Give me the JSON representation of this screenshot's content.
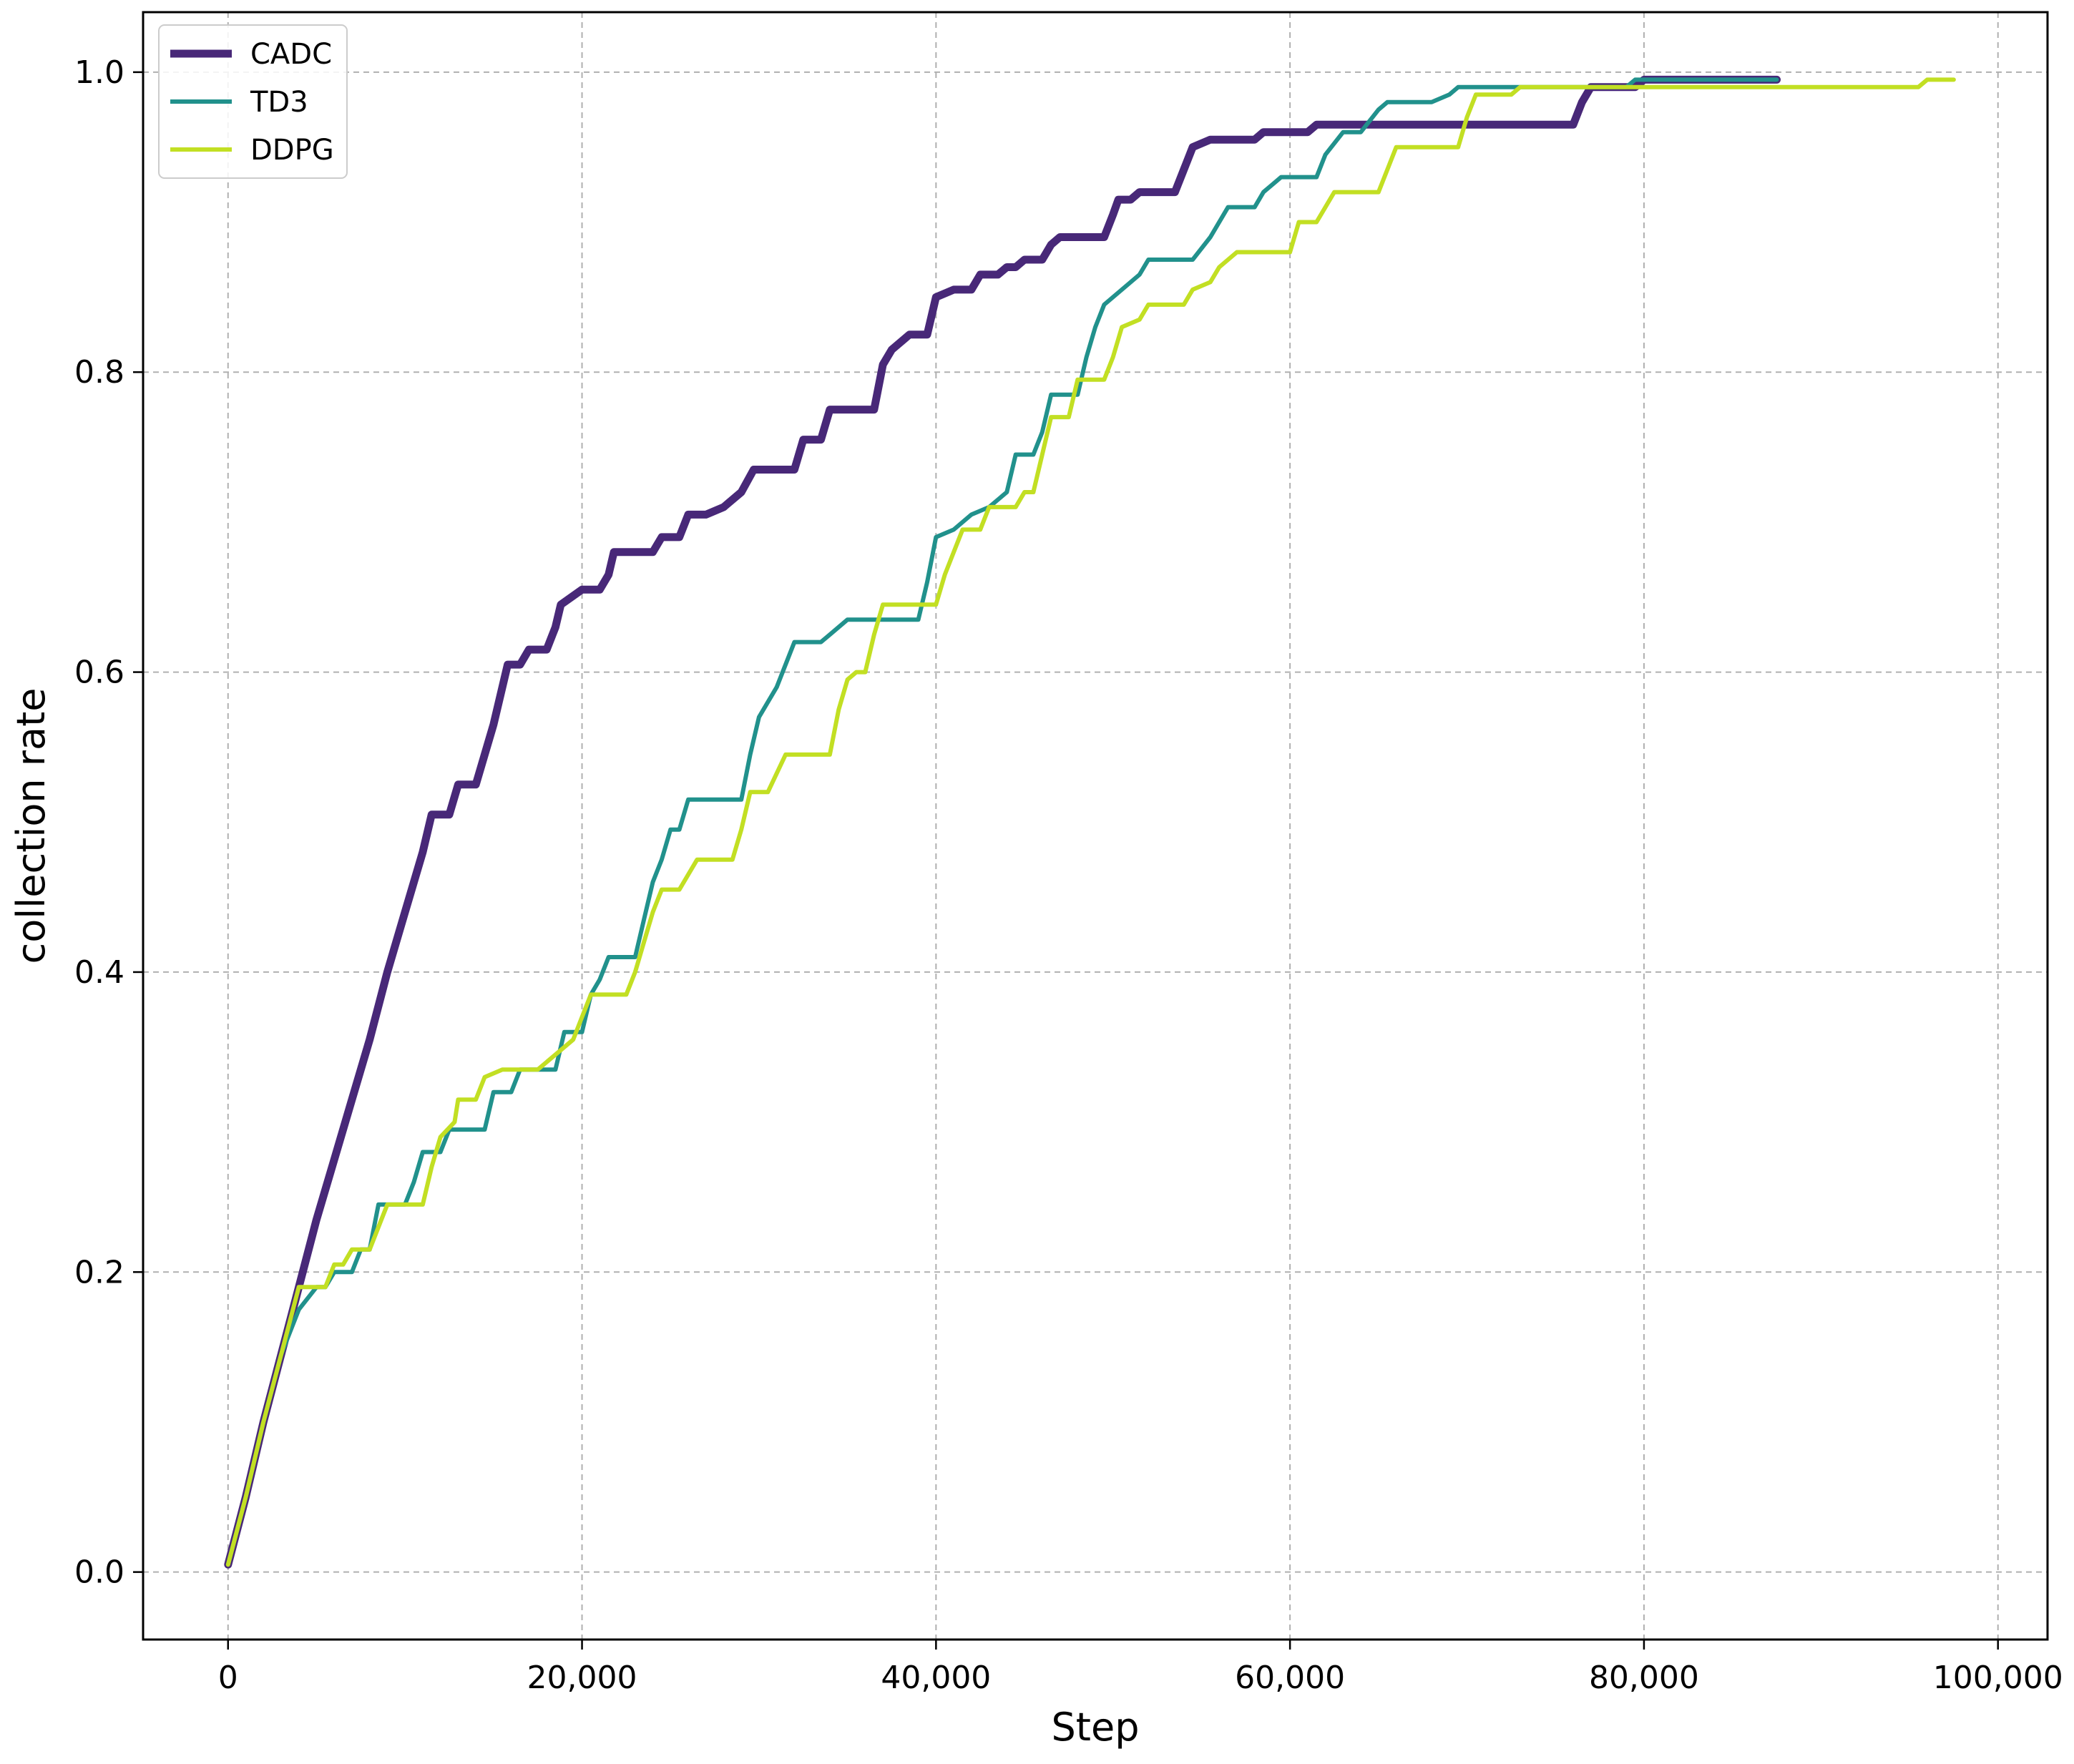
{
  "chart_data": {
    "type": "line",
    "title": "",
    "xlabel": "Step",
    "ylabel": "collection rate",
    "xlim": [
      -4800,
      102800
    ],
    "ylim": [
      -0.045,
      1.04
    ],
    "x_ticks": [
      0,
      20000,
      40000,
      60000,
      80000,
      100000
    ],
    "x_tick_labels": [
      "0",
      "20,000",
      "40,000",
      "60,000",
      "80,000",
      "100,000"
    ],
    "y_ticks": [
      0.0,
      0.2,
      0.4,
      0.6,
      0.8,
      1.0
    ],
    "y_tick_labels": [
      "0.0",
      "0.2",
      "0.4",
      "0.6",
      "0.8",
      "1.0"
    ],
    "grid": true,
    "legend_position": "top-left",
    "series": [
      {
        "name": "CADC",
        "color": "#482878",
        "line_width": 11,
        "points": [
          [
            0,
            0.005
          ],
          [
            1000,
            0.05
          ],
          [
            2000,
            0.1
          ],
          [
            3000,
            0.145
          ],
          [
            4000,
            0.19
          ],
          [
            5000,
            0.235
          ],
          [
            6000,
            0.275
          ],
          [
            7000,
            0.315
          ],
          [
            8000,
            0.355
          ],
          [
            9000,
            0.4
          ],
          [
            10000,
            0.44
          ],
          [
            11000,
            0.48
          ],
          [
            11500,
            0.505
          ],
          [
            12500,
            0.505
          ],
          [
            13000,
            0.525
          ],
          [
            14000,
            0.525
          ],
          [
            15000,
            0.565
          ],
          [
            15800,
            0.605
          ],
          [
            16500,
            0.605
          ],
          [
            17000,
            0.615
          ],
          [
            18000,
            0.615
          ],
          [
            18500,
            0.63
          ],
          [
            18800,
            0.645
          ],
          [
            20000,
            0.655
          ],
          [
            21000,
            0.655
          ],
          [
            21500,
            0.665
          ],
          [
            21800,
            0.68
          ],
          [
            23000,
            0.68
          ],
          [
            24000,
            0.68
          ],
          [
            24500,
            0.69
          ],
          [
            25500,
            0.69
          ],
          [
            26000,
            0.705
          ],
          [
            27000,
            0.705
          ],
          [
            28000,
            0.71
          ],
          [
            29000,
            0.72
          ],
          [
            29700,
            0.735
          ],
          [
            32000,
            0.735
          ],
          [
            32500,
            0.755
          ],
          [
            33500,
            0.755
          ],
          [
            34000,
            0.775
          ],
          [
            36500,
            0.775
          ],
          [
            37000,
            0.805
          ],
          [
            37500,
            0.815
          ],
          [
            38500,
            0.825
          ],
          [
            39500,
            0.825
          ],
          [
            40000,
            0.85
          ],
          [
            41000,
            0.855
          ],
          [
            42000,
            0.855
          ],
          [
            42500,
            0.865
          ],
          [
            43500,
            0.865
          ],
          [
            44000,
            0.87
          ],
          [
            44500,
            0.87
          ],
          [
            45000,
            0.875
          ],
          [
            46000,
            0.875
          ],
          [
            46500,
            0.885
          ],
          [
            47000,
            0.89
          ],
          [
            49500,
            0.89
          ],
          [
            50000,
            0.905
          ],
          [
            50300,
            0.915
          ],
          [
            51000,
            0.915
          ],
          [
            51500,
            0.92
          ],
          [
            53500,
            0.92
          ],
          [
            54000,
            0.935
          ],
          [
            54500,
            0.95
          ],
          [
            55500,
            0.955
          ],
          [
            58000,
            0.955
          ],
          [
            58500,
            0.96
          ],
          [
            61000,
            0.96
          ],
          [
            61500,
            0.965
          ],
          [
            76000,
            0.965
          ],
          [
            76500,
            0.98
          ],
          [
            77000,
            0.99
          ],
          [
            79500,
            0.99
          ],
          [
            80000,
            0.995
          ],
          [
            87500,
            0.995
          ]
        ]
      },
      {
        "name": "TD3",
        "color": "#21918c",
        "line_width": 6,
        "points": [
          [
            0,
            0.005
          ],
          [
            1000,
            0.05
          ],
          [
            2000,
            0.1
          ],
          [
            3000,
            0.145
          ],
          [
            4000,
            0.175
          ],
          [
            5000,
            0.19
          ],
          [
            5500,
            0.19
          ],
          [
            6000,
            0.2
          ],
          [
            7000,
            0.2
          ],
          [
            7500,
            0.215
          ],
          [
            8000,
            0.215
          ],
          [
            8500,
            0.245
          ],
          [
            10000,
            0.245
          ],
          [
            10500,
            0.26
          ],
          [
            11000,
            0.28
          ],
          [
            12000,
            0.28
          ],
          [
            12500,
            0.295
          ],
          [
            14500,
            0.295
          ],
          [
            15000,
            0.32
          ],
          [
            16000,
            0.32
          ],
          [
            16500,
            0.335
          ],
          [
            18500,
            0.335
          ],
          [
            19000,
            0.36
          ],
          [
            20000,
            0.36
          ],
          [
            20500,
            0.385
          ],
          [
            21000,
            0.395
          ],
          [
            21500,
            0.41
          ],
          [
            23000,
            0.41
          ],
          [
            23500,
            0.435
          ],
          [
            24000,
            0.46
          ],
          [
            24500,
            0.475
          ],
          [
            25000,
            0.495
          ],
          [
            25500,
            0.495
          ],
          [
            26000,
            0.515
          ],
          [
            29000,
            0.515
          ],
          [
            29500,
            0.545
          ],
          [
            30000,
            0.57
          ],
          [
            31000,
            0.59
          ],
          [
            32000,
            0.62
          ],
          [
            33500,
            0.62
          ],
          [
            34000,
            0.625
          ],
          [
            35000,
            0.635
          ],
          [
            39000,
            0.635
          ],
          [
            39500,
            0.66
          ],
          [
            40000,
            0.69
          ],
          [
            41000,
            0.695
          ],
          [
            42000,
            0.705
          ],
          [
            43000,
            0.71
          ],
          [
            44000,
            0.72
          ],
          [
            44500,
            0.745
          ],
          [
            45500,
            0.745
          ],
          [
            46000,
            0.76
          ],
          [
            46500,
            0.785
          ],
          [
            48000,
            0.785
          ],
          [
            48500,
            0.81
          ],
          [
            49000,
            0.83
          ],
          [
            49500,
            0.845
          ],
          [
            50500,
            0.855
          ],
          [
            51500,
            0.865
          ],
          [
            52000,
            0.875
          ],
          [
            54500,
            0.875
          ],
          [
            55500,
            0.89
          ],
          [
            56500,
            0.91
          ],
          [
            58000,
            0.91
          ],
          [
            58500,
            0.92
          ],
          [
            59500,
            0.93
          ],
          [
            61500,
            0.93
          ],
          [
            62000,
            0.945
          ],
          [
            63000,
            0.96
          ],
          [
            64000,
            0.96
          ],
          [
            65000,
            0.975
          ],
          [
            65500,
            0.98
          ],
          [
            68000,
            0.98
          ],
          [
            69000,
            0.985
          ],
          [
            69500,
            0.99
          ],
          [
            79000,
            0.99
          ],
          [
            79500,
            0.995
          ],
          [
            87500,
            0.995
          ]
        ]
      },
      {
        "name": "DDPG",
        "color": "#c2df23",
        "line_width": 6,
        "points": [
          [
            0,
            0.005
          ],
          [
            1000,
            0.05
          ],
          [
            2000,
            0.1
          ],
          [
            3000,
            0.145
          ],
          [
            4000,
            0.19
          ],
          [
            5500,
            0.19
          ],
          [
            6000,
            0.205
          ],
          [
            6500,
            0.205
          ],
          [
            7000,
            0.215
          ],
          [
            8000,
            0.215
          ],
          [
            8500,
            0.23
          ],
          [
            9000,
            0.245
          ],
          [
            11000,
            0.245
          ],
          [
            11500,
            0.27
          ],
          [
            12000,
            0.29
          ],
          [
            12800,
            0.3
          ],
          [
            13000,
            0.315
          ],
          [
            14000,
            0.315
          ],
          [
            14500,
            0.33
          ],
          [
            15500,
            0.335
          ],
          [
            17500,
            0.335
          ],
          [
            18500,
            0.345
          ],
          [
            19500,
            0.355
          ],
          [
            20000,
            0.37
          ],
          [
            20500,
            0.385
          ],
          [
            22500,
            0.385
          ],
          [
            23000,
            0.4
          ],
          [
            23500,
            0.42
          ],
          [
            24000,
            0.44
          ],
          [
            24500,
            0.455
          ],
          [
            25500,
            0.455
          ],
          [
            26000,
            0.465
          ],
          [
            26500,
            0.475
          ],
          [
            28500,
            0.475
          ],
          [
            29000,
            0.495
          ],
          [
            29500,
            0.52
          ],
          [
            30500,
            0.52
          ],
          [
            31500,
            0.545
          ],
          [
            34000,
            0.545
          ],
          [
            34500,
            0.575
          ],
          [
            35000,
            0.595
          ],
          [
            35500,
            0.6
          ],
          [
            36000,
            0.6
          ],
          [
            36500,
            0.625
          ],
          [
            37000,
            0.645
          ],
          [
            40000,
            0.645
          ],
          [
            40500,
            0.665
          ],
          [
            41000,
            0.68
          ],
          [
            41500,
            0.695
          ],
          [
            42500,
            0.695
          ],
          [
            43000,
            0.71
          ],
          [
            44500,
            0.71
          ],
          [
            45000,
            0.72
          ],
          [
            45500,
            0.72
          ],
          [
            46000,
            0.745
          ],
          [
            46500,
            0.77
          ],
          [
            47500,
            0.77
          ],
          [
            48000,
            0.795
          ],
          [
            49500,
            0.795
          ],
          [
            50000,
            0.81
          ],
          [
            50500,
            0.83
          ],
          [
            51500,
            0.835
          ],
          [
            52000,
            0.845
          ],
          [
            54000,
            0.845
          ],
          [
            54500,
            0.855
          ],
          [
            55500,
            0.86
          ],
          [
            56000,
            0.87
          ],
          [
            57000,
            0.88
          ],
          [
            60000,
            0.88
          ],
          [
            60500,
            0.9
          ],
          [
            61500,
            0.9
          ],
          [
            62000,
            0.91
          ],
          [
            62500,
            0.92
          ],
          [
            65000,
            0.92
          ],
          [
            65500,
            0.935
          ],
          [
            66000,
            0.95
          ],
          [
            69500,
            0.95
          ],
          [
            70000,
            0.97
          ],
          [
            70500,
            0.985
          ],
          [
            72500,
            0.985
          ],
          [
            73000,
            0.99
          ],
          [
            95500,
            0.99
          ],
          [
            96000,
            0.995
          ],
          [
            97500,
            0.995
          ]
        ]
      }
    ]
  }
}
